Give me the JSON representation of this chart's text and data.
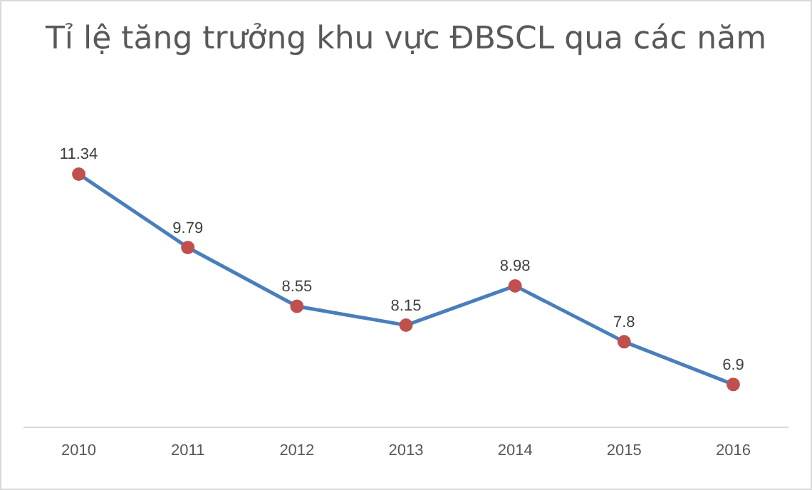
{
  "chart_data": {
    "type": "line",
    "title": "Tỉ lệ tăng trưởng khu vực ĐBSCL qua các năm",
    "categories": [
      "2010",
      "2011",
      "2012",
      "2013",
      "2014",
      "2015",
      "2016"
    ],
    "series": [
      {
        "color": "#4a7ebb",
        "colors": [
          "#c0504d",
          "#c0504d",
          "#c0504d",
          "#c0504d",
          "#c0504d",
          "#c0504d",
          "#c0504d"
        ],
        "values": [
          11.34,
          9.79,
          8.55,
          8.15,
          8.98,
          7.8,
          6.9
        ]
      }
    ],
    "data_labels": true,
    "marker": "circle",
    "line_style": "solid",
    "grid": false,
    "legend": false,
    "tick_labels": "x"
  }
}
